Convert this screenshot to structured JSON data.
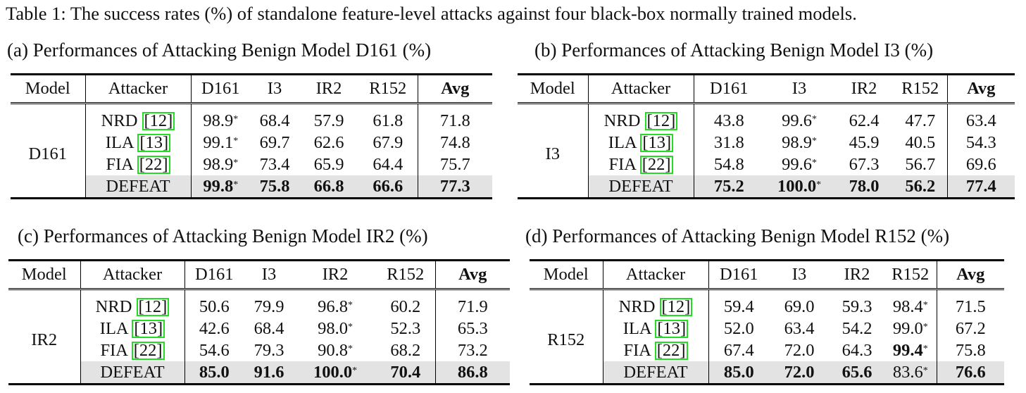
{
  "caption": "Table 1: The success rates (%) of standalone feature-level attacks against four black-box normally trained models.",
  "header": {
    "model": "Model",
    "attacker": "Attacker",
    "cols": [
      "D161",
      "I3",
      "IR2",
      "R152"
    ],
    "avg": "Avg"
  },
  "attackers": [
    {
      "name": "NRD",
      "ref": "12"
    },
    {
      "name": "ILA",
      "ref": "13"
    },
    {
      "name": "FIA",
      "ref": "22"
    },
    {
      "name": "DEFEAT",
      "ref": ""
    }
  ],
  "tables": [
    {
      "title": "(a)  Performances of Attacking Benign Model D161 (%)",
      "model": "D161",
      "rows": [
        [
          "98.9*",
          "68.4",
          "57.9",
          "61.8",
          "71.8"
        ],
        [
          "99.1*",
          "69.7",
          "62.6",
          "67.9",
          "74.8"
        ],
        [
          "98.9*",
          "73.4",
          "65.9",
          "64.4",
          "75.7"
        ],
        [
          "99.8*",
          "75.8",
          "66.8",
          "66.6",
          "77.3"
        ]
      ]
    },
    {
      "title": "(b)  Performances of Attacking Benign Model I3 (%)",
      "model": "I3",
      "rows": [
        [
          "43.8",
          "99.6*",
          "62.4",
          "47.7",
          "63.4"
        ],
        [
          "31.8",
          "98.9*",
          "45.9",
          "40.5",
          "54.3"
        ],
        [
          "54.8",
          "99.6*",
          "67.3",
          "56.7",
          "69.6"
        ],
        [
          "75.2",
          "100.0*",
          "78.0",
          "56.2",
          "77.4"
        ]
      ]
    },
    {
      "title": "(c)  Performances of Attacking Benign Model IR2 (%)",
      "model": "IR2",
      "rows": [
        [
          "50.6",
          "79.9",
          "96.8*",
          "60.2",
          "71.9"
        ],
        [
          "42.6",
          "68.4",
          "98.0*",
          "52.3",
          "65.3"
        ],
        [
          "54.6",
          "79.3",
          "90.8*",
          "68.2",
          "73.2"
        ],
        [
          "85.0",
          "91.6",
          "100.0*",
          "70.4",
          "86.8"
        ]
      ]
    },
    {
      "title": "(d)  Performances of Attacking Benign Model R152 (%)",
      "model": "R152",
      "rows": [
        [
          "59.4",
          "69.0",
          "59.3",
          "98.4*",
          "71.5"
        ],
        [
          "52.0",
          "63.4",
          "54.2",
          "99.0*",
          "67.2"
        ],
        [
          "67.4",
          "72.0",
          "64.3",
          "99.4*",
          "75.8"
        ],
        [
          "85.0",
          "72.0",
          "65.6",
          "83.6*",
          "76.6"
        ]
      ],
      "bold_extra": [
        [
          2,
          3
        ]
      ]
    }
  ]
}
